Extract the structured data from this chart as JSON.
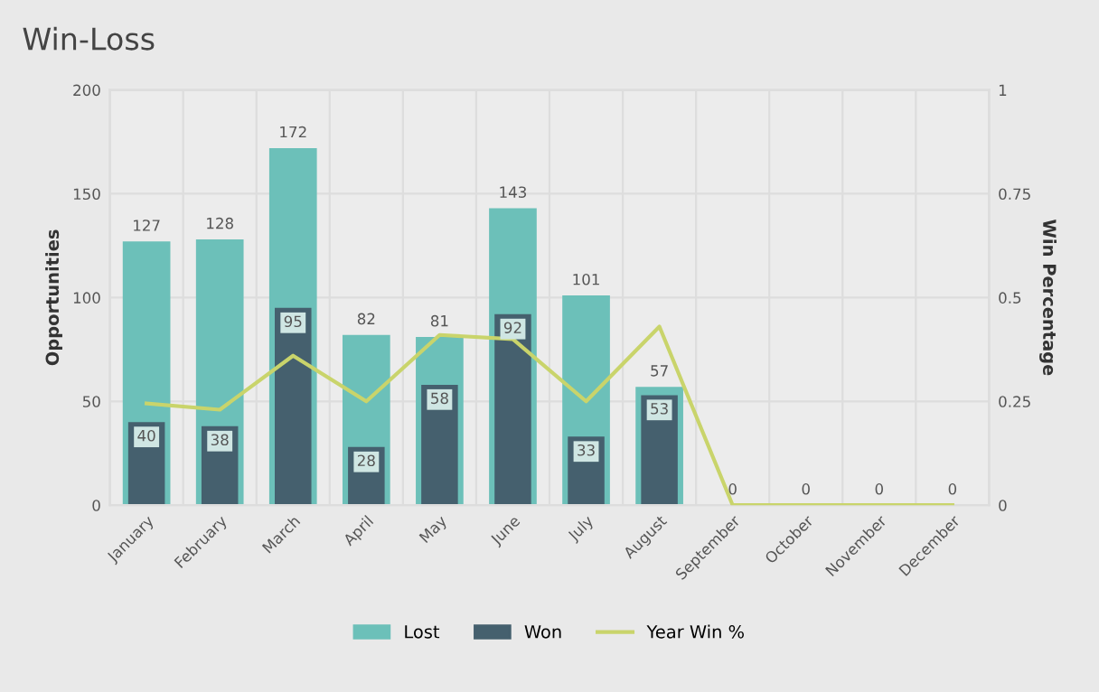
{
  "chart_data": {
    "type": "bar",
    "title": "Win-Loss",
    "ylabel": "Opportunities",
    "y2label": "Win Percentage",
    "categories": [
      "January",
      "February",
      "March",
      "April",
      "May",
      "June",
      "July",
      "August",
      "September",
      "October",
      "November",
      "December"
    ],
    "series": [
      {
        "name": "Lost",
        "color": "#6cc0b9",
        "values": [
          127,
          128,
          172,
          82,
          81,
          143,
          101,
          57,
          0,
          0,
          0,
          0
        ],
        "value_labels": [
          "127",
          "128",
          "172",
          "82",
          "81",
          "143",
          "101",
          "57",
          "0",
          "0",
          "0",
          "0"
        ]
      },
      {
        "name": "Won",
        "color": "#45606e",
        "values": [
          40,
          38,
          95,
          28,
          58,
          92,
          33,
          53,
          0,
          0,
          0,
          0
        ],
        "value_labels": [
          "40",
          "38",
          "95",
          "28",
          "58",
          "92",
          "33",
          "53",
          null,
          null,
          null,
          null
        ]
      },
      {
        "name": "Year Win %",
        "type": "line",
        "axis": "y2",
        "color": "#c9d46b",
        "values": [
          0.245,
          0.23,
          0.36,
          0.25,
          0.41,
          0.4,
          0.25,
          0.43,
          0,
          0,
          0,
          0
        ]
      }
    ],
    "ylim": [
      0,
      200
    ],
    "yticks": [
      0,
      50,
      100,
      150,
      200
    ],
    "y2lim": [
      0,
      1
    ],
    "y2ticks": [
      0,
      0.25,
      0.5,
      0.75,
      1
    ],
    "grid": true,
    "legend": "bottom",
    "marker": "none",
    "line_style": "solid"
  }
}
